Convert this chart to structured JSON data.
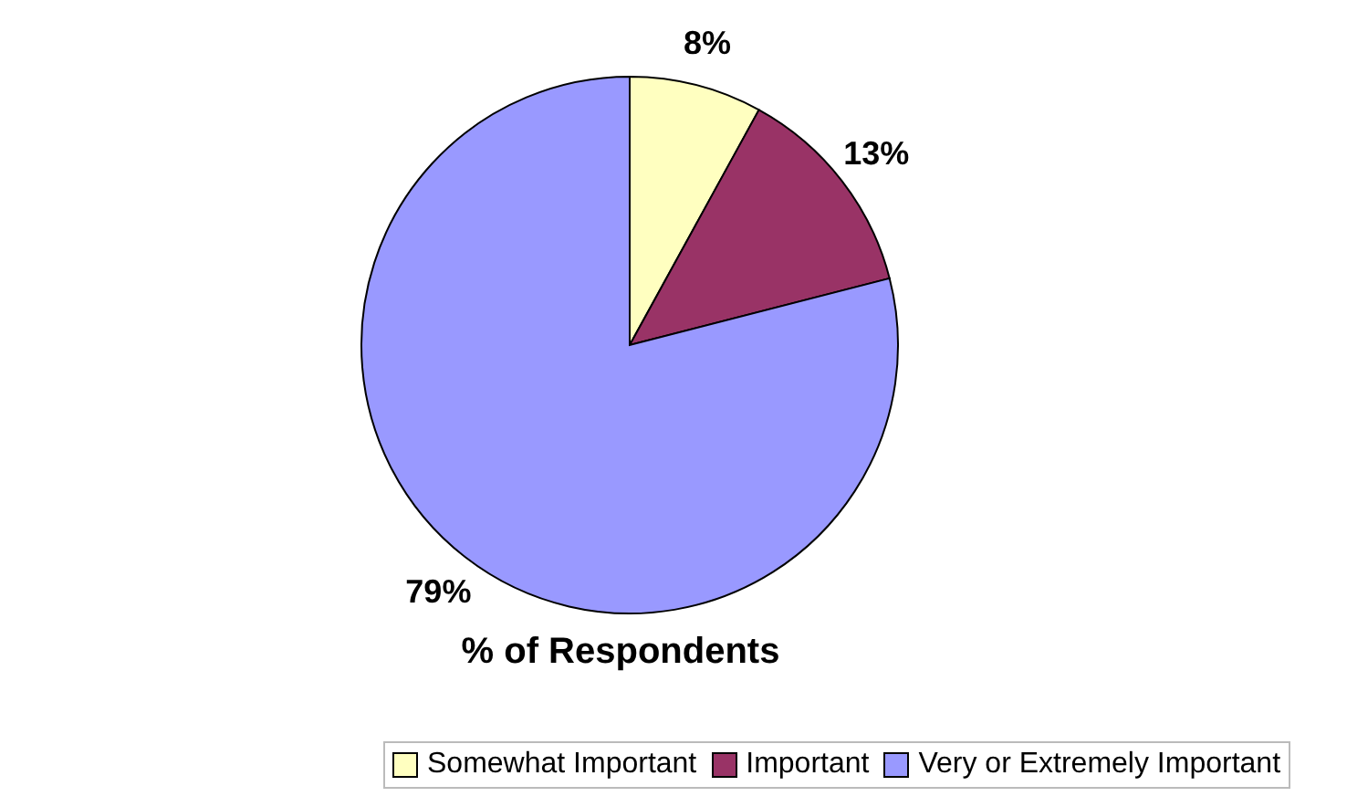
{
  "chart_data": {
    "type": "pie",
    "title": "% of Respondents",
    "categories": [
      "Somewhat Important",
      "Important",
      "Very or Extremely Important"
    ],
    "values": [
      8,
      13,
      79
    ],
    "colors": [
      "#ffffc0",
      "#993366",
      "#9999ff"
    ],
    "value_labels": [
      "8%",
      "13%",
      "79%"
    ],
    "legend": "bottom"
  }
}
